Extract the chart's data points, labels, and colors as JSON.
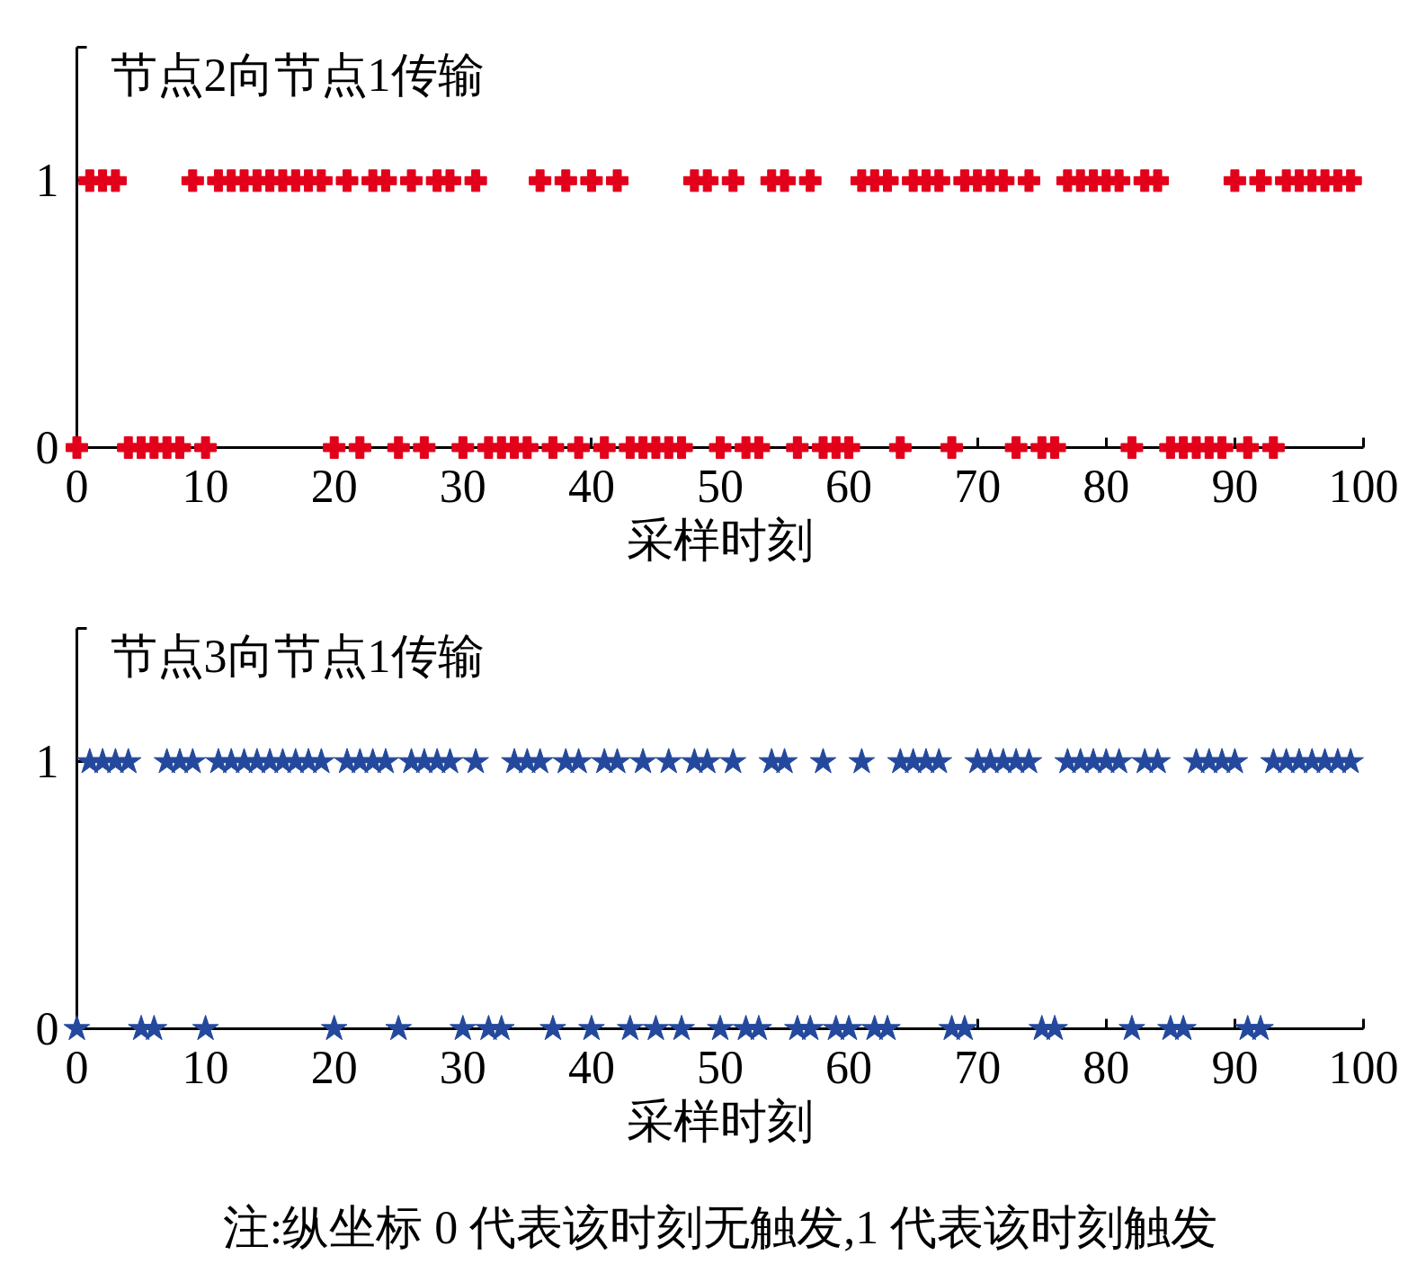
{
  "chart_data": [
    {
      "type": "scatter",
      "title": "节点2向节点1传输",
      "xlabel": "采样时刻",
      "x": [
        0,
        1,
        2,
        3,
        4,
        5,
        6,
        7,
        8,
        9,
        10,
        11,
        12,
        13,
        14,
        15,
        16,
        17,
        18,
        19,
        20,
        21,
        22,
        23,
        24,
        25,
        26,
        27,
        28,
        29,
        30,
        31,
        32,
        33,
        34,
        35,
        36,
        37,
        38,
        39,
        40,
        41,
        42,
        43,
        44,
        45,
        46,
        47,
        48,
        49,
        50,
        51,
        52,
        53,
        54,
        55,
        56,
        57,
        58,
        59,
        60,
        61,
        62,
        63,
        64,
        65,
        66,
        67,
        68,
        69,
        70,
        71,
        72,
        73,
        74,
        75,
        76,
        77,
        78,
        79,
        80,
        81,
        82,
        83,
        84,
        85,
        86,
        87,
        88,
        89,
        90,
        91,
        92,
        93,
        94,
        95,
        96,
        97,
        98,
        99
      ],
      "values": [
        0,
        1,
        1,
        1,
        0,
        0,
        0,
        0,
        0,
        1,
        0,
        1,
        1,
        1,
        1,
        1,
        1,
        1,
        1,
        1,
        0,
        1,
        0,
        1,
        1,
        0,
        1,
        0,
        1,
        1,
        0,
        1,
        0,
        0,
        0,
        0,
        1,
        0,
        1,
        0,
        1,
        0,
        1,
        0,
        0,
        0,
        0,
        0,
        1,
        1,
        0,
        1,
        0,
        0,
        1,
        1,
        0,
        1,
        0,
        0,
        0,
        1,
        1,
        1,
        0,
        1,
        1,
        1,
        0,
        1,
        1,
        1,
        1,
        0,
        1,
        0,
        0,
        1,
        1,
        1,
        1,
        1,
        0,
        1,
        1,
        0,
        0,
        0,
        0,
        0,
        1,
        0,
        1,
        0,
        1,
        1,
        1,
        1,
        1,
        1
      ],
      "color": "#e2001a",
      "marker": "cross",
      "grid": false,
      "xlim": [
        0,
        100
      ],
      "ylim": [
        0,
        1.5
      ],
      "xticks": [
        0,
        10,
        20,
        30,
        40,
        50,
        60,
        70,
        80,
        90,
        100
      ],
      "yticks": [
        0,
        1,
        {
          "value": 1.5,
          "label": null
        }
      ]
    },
    {
      "type": "scatter",
      "title": "节点3向节点1传输",
      "xlabel": "采样时刻",
      "x": [
        0,
        1,
        2,
        3,
        4,
        5,
        6,
        7,
        8,
        9,
        10,
        11,
        12,
        13,
        14,
        15,
        16,
        17,
        18,
        19,
        20,
        21,
        22,
        23,
        24,
        25,
        26,
        27,
        28,
        29,
        30,
        31,
        32,
        33,
        34,
        35,
        36,
        37,
        38,
        39,
        40,
        41,
        42,
        43,
        44,
        45,
        46,
        47,
        48,
        49,
        50,
        51,
        52,
        53,
        54,
        55,
        56,
        57,
        58,
        59,
        60,
        61,
        62,
        63,
        64,
        65,
        66,
        67,
        68,
        69,
        70,
        71,
        72,
        73,
        74,
        75,
        76,
        77,
        78,
        79,
        80,
        81,
        82,
        83,
        84,
        85,
        86,
        87,
        88,
        89,
        90,
        91,
        92,
        93,
        94,
        95,
        96,
        97,
        98,
        99
      ],
      "values": [
        0,
        1,
        1,
        1,
        1,
        0,
        0,
        1,
        1,
        1,
        0,
        1,
        1,
        1,
        1,
        1,
        1,
        1,
        1,
        1,
        0,
        1,
        1,
        1,
        1,
        0,
        1,
        1,
        1,
        1,
        0,
        1,
        0,
        0,
        1,
        1,
        1,
        0,
        1,
        1,
        0,
        1,
        1,
        0,
        1,
        0,
        1,
        0,
        1,
        1,
        0,
        1,
        0,
        0,
        1,
        1,
        0,
        0,
        1,
        0,
        0,
        1,
        0,
        0,
        1,
        1,
        1,
        1,
        0,
        0,
        1,
        1,
        1,
        1,
        1,
        0,
        0,
        1,
        1,
        1,
        1,
        1,
        0,
        1,
        1,
        0,
        0,
        1,
        1,
        1,
        1,
        0,
        0,
        1,
        1,
        1,
        1,
        1,
        1,
        1
      ],
      "color": "#24489c",
      "marker": "star",
      "grid": false,
      "xlim": [
        0,
        100
      ],
      "ylim": [
        0,
        1.5
      ],
      "xticks": [
        0,
        10,
        20,
        30,
        40,
        50,
        60,
        70,
        80,
        90,
        100
      ],
      "yticks": [
        0,
        1,
        {
          "value": 1.5,
          "label": null
        }
      ],
      "annotations": [
        "注:纵坐标 0 代表该时刻无触发,1 代表该时刻触发"
      ]
    }
  ]
}
